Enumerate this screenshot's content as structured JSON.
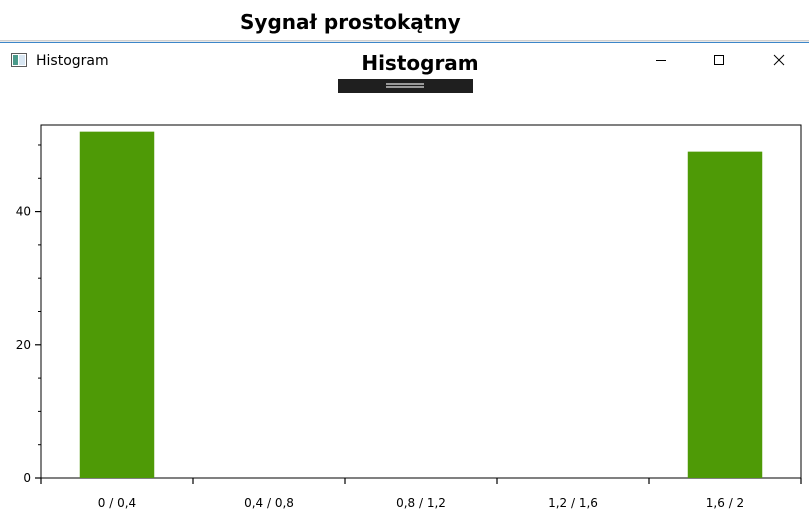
{
  "background_window": {
    "title": "Sygnał prostokątny"
  },
  "window": {
    "title": "Histogram",
    "controls": {
      "minimize": "minimize-icon",
      "maximize": "maximize-icon",
      "close": "close-icon"
    }
  },
  "chart_data": {
    "type": "bar",
    "title": "Histogram",
    "categories": [
      "0 / 0,4",
      "0,4 / 0,8",
      "0,8 / 1,2",
      "1,2 / 1,6",
      "1,6 / 2"
    ],
    "values": [
      52,
      0,
      0,
      0,
      49
    ],
    "ylim": [
      0,
      53
    ],
    "yticks": [
      0,
      20,
      40
    ],
    "bar_color": "#4e9a06",
    "grid": false
  }
}
